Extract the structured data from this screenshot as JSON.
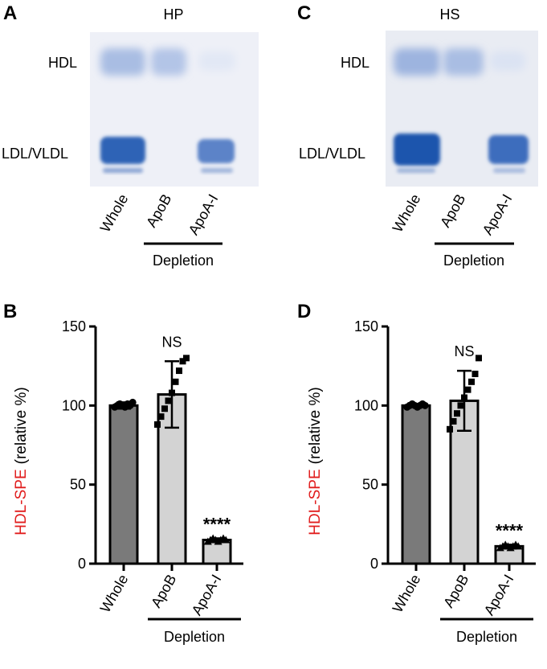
{
  "panels": {
    "A": {
      "letter": "A",
      "title": "HP"
    },
    "B": {
      "letter": "B"
    },
    "C": {
      "letter": "C",
      "title": "HS"
    },
    "D": {
      "letter": "D"
    }
  },
  "gel": {
    "band_labels": [
      "HDL",
      "LDL/VLDL"
    ],
    "lanes": [
      "Whole",
      "ApoB",
      "ApoA-I"
    ],
    "depletion_label": "Depletion"
  },
  "colors": {
    "whole_bar": "#7a7a7a",
    "depleted_bar": "#d3d3d3",
    "ylabel_red": "#e11d1d",
    "gel_band": "#2b5fb4"
  },
  "chart_data": [
    {
      "panel": "B",
      "type": "bar",
      "categories": [
        "Whole",
        "ApoB",
        "ApoA-I"
      ],
      "values": [
        100,
        107,
        15
      ],
      "errors": [
        2,
        21,
        1
      ],
      "points": [
        [
          99,
          100,
          101,
          100,
          99,
          101,
          100,
          102
        ],
        [
          88,
          93,
          98,
          103,
          108,
          115,
          122,
          128,
          130
        ],
        [
          14,
          15,
          16,
          15,
          14,
          15,
          16,
          15
        ]
      ],
      "ylabel_red": "HDL-SPE",
      "ylabel_rest": "(relative %)",
      "ylim": [
        0,
        150
      ],
      "yticks": [
        0,
        50,
        100,
        150
      ],
      "annotations": [
        "",
        "NS",
        "****"
      ],
      "depletion_label": "Depletion"
    },
    {
      "panel": "D",
      "type": "bar",
      "categories": [
        "Whole",
        "ApoB",
        "ApoA-I"
      ],
      "values": [
        100,
        103,
        11
      ],
      "errors": [
        1,
        19,
        1
      ],
      "points": [
        [
          99,
          100,
          101,
          100,
          99,
          100,
          101,
          100
        ],
        [
          85,
          90,
          95,
          100,
          105,
          110,
          115,
          120,
          130
        ],
        [
          10,
          11,
          12,
          11,
          10,
          11,
          12,
          11
        ]
      ],
      "ylabel_red": "HDL-SPE",
      "ylabel_rest": "(relative %)",
      "ylim": [
        0,
        150
      ],
      "yticks": [
        0,
        50,
        100,
        150
      ],
      "annotations": [
        "",
        "NS",
        "****"
      ],
      "depletion_label": "Depletion"
    }
  ]
}
